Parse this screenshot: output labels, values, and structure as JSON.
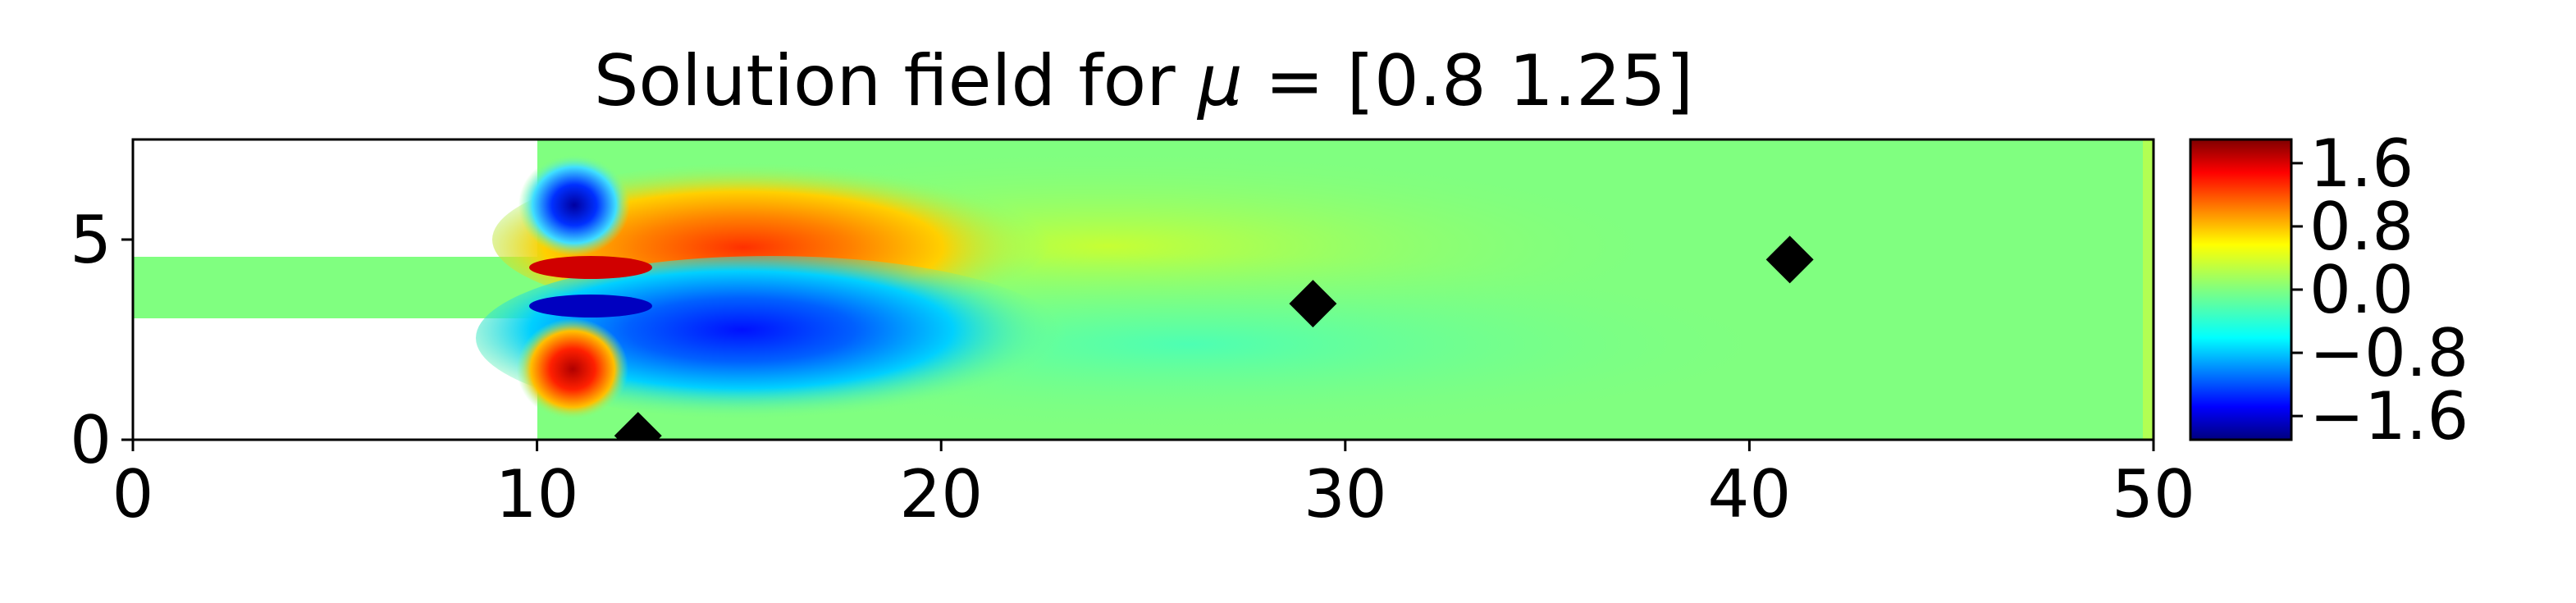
{
  "chart_data": {
    "type": "heatmap",
    "title": "Solution field for ",
    "title_symbol": "μ",
    "title_value": " = [0.8  1.25]",
    "xlim": [
      0,
      50
    ],
    "ylim": [
      0,
      7.5
    ],
    "x_ticks": [
      0,
      10,
      20,
      30,
      40,
      50
    ],
    "y_ticks": [
      0,
      5
    ],
    "colormap": "jet",
    "colorbar": {
      "range": [
        -1.9,
        1.9
      ],
      "ticks": [
        1.6,
        0.8,
        0.0,
        -0.8,
        -1.6
      ],
      "tick_labels": [
        "1.6",
        "0.8",
        "0.0",
        "−0.8",
        "−1.6"
      ]
    },
    "domain": {
      "inlet_channel": {
        "x": [
          0,
          10
        ],
        "y": [
          3,
          4.5
        ]
      },
      "expansion": {
        "x": [
          10,
          50
        ],
        "y": [
          0,
          7.5
        ]
      }
    },
    "markers": [
      {
        "x": 12.5,
        "y": 0.1
      },
      {
        "x": 29.2,
        "y": 3.4
      },
      {
        "x": 41.0,
        "y": 4.5
      }
    ],
    "colors": {
      "marker": "#000000",
      "background_field": "#80ff80"
    }
  }
}
